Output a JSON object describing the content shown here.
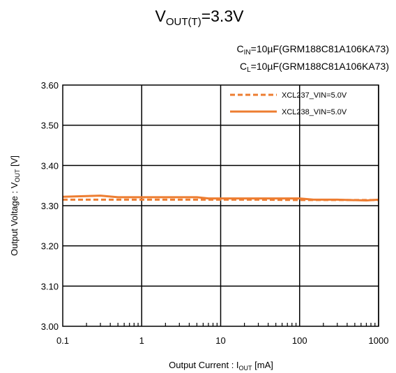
{
  "chart_data": {
    "type": "line",
    "title_main": "V",
    "title_sub": "OUT(T)",
    "title_tail": "=3.3V",
    "notes": [
      {
        "pre": "C",
        "sub": "IN",
        "post": "=10µF(GRM188C81A106KA73)"
      },
      {
        "pre": "C",
        "sub": "L",
        "post": "=10µF(GRM188C81A106KA73)"
      }
    ],
    "xlabel": {
      "pre": "Output Current : I",
      "sub": "OUT",
      "post": " [mA]"
    },
    "ylabel": {
      "pre": "Output Voltage : V",
      "sub": "OUT",
      "post": " [V]"
    },
    "x_scale": "log",
    "xlim": [
      0.1,
      1000
    ],
    "ylim": [
      3.0,
      3.6
    ],
    "x_ticks": [
      0.1,
      1,
      10,
      100,
      1000
    ],
    "x_tick_labels": [
      "0.1",
      "1",
      "10",
      "100",
      "1000"
    ],
    "y_ticks": [
      3.0,
      3.1,
      3.2,
      3.3,
      3.4,
      3.5,
      3.6
    ],
    "y_tick_labels": [
      "3.00",
      "3.10",
      "3.20",
      "3.30",
      "3.40",
      "3.50",
      "3.60"
    ],
    "grid": true,
    "legend_position": "top-right",
    "series": [
      {
        "name": "XCL237_VIN=5.0V",
        "style": "dashed",
        "color": "#ED7D31",
        "x": [
          0.1,
          0.3,
          1,
          3,
          10,
          30,
          100,
          200,
          500,
          1000,
          1500
        ],
        "y": [
          3.315,
          3.315,
          3.315,
          3.315,
          3.315,
          3.315,
          3.314,
          3.314,
          3.314,
          3.314,
          3.314
        ]
      },
      {
        "name": "XCL238_VIN=5.0V",
        "style": "solid",
        "color": "#ED7D31",
        "x": [
          0.1,
          0.3,
          0.5,
          1,
          2,
          5,
          7,
          10,
          20,
          50,
          100,
          150,
          300,
          700,
          1000,
          1500
        ],
        "y": [
          3.322,
          3.325,
          3.321,
          3.321,
          3.321,
          3.321,
          3.318,
          3.318,
          3.318,
          3.318,
          3.318,
          3.315,
          3.315,
          3.313,
          3.315,
          3.315
        ]
      }
    ]
  }
}
